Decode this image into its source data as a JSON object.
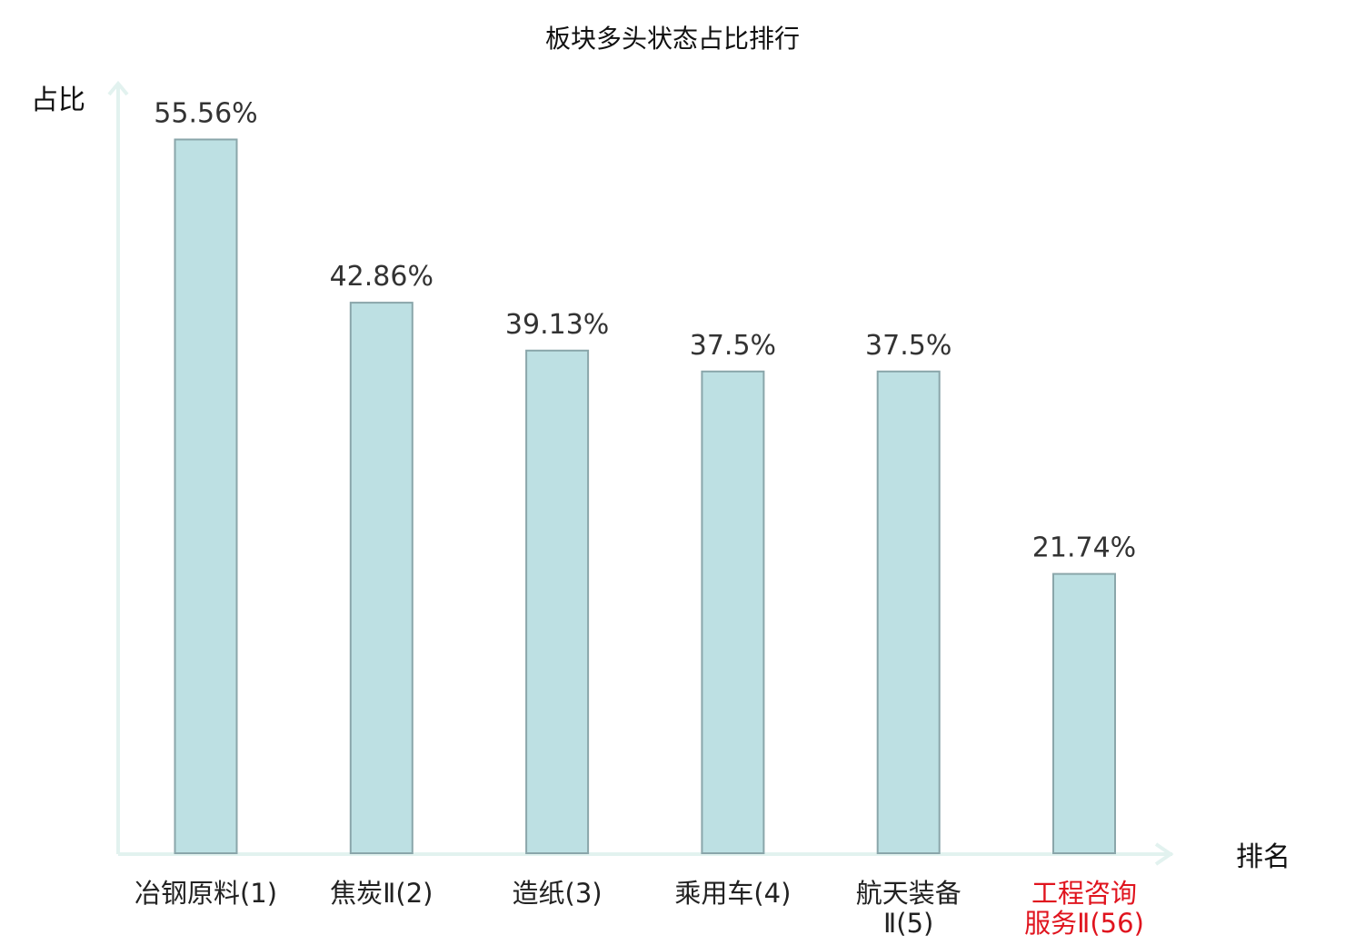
{
  "chart_data": {
    "type": "bar",
    "title": "板块多头状态占比排行",
    "ylabel": "占比",
    "xlabel": "排名",
    "ylim": [
      0,
      60
    ],
    "grid": false,
    "legend": "none",
    "categories": [
      [
        "冶钢原料(1)"
      ],
      [
        "焦炭Ⅱ(2)"
      ],
      [
        "造纸(3)"
      ],
      [
        "乘用车(4)"
      ],
      [
        "航天装备",
        "Ⅱ(5)"
      ],
      [
        "工程咨询",
        "服务Ⅱ(56)"
      ]
    ],
    "values": [
      55.56,
      42.86,
      39.13,
      37.5,
      37.5,
      21.74
    ],
    "value_labels": [
      "55.56%",
      "42.86%",
      "39.13%",
      "37.5%",
      "37.5%",
      "21.74%"
    ],
    "highlight_index": 5,
    "colors": {
      "bar_fill": "#bde0e3",
      "bar_stroke": "#8aa6aa",
      "axis": "#e2f2ef",
      "highlight_text": "#e0141e",
      "text": "#222222"
    }
  }
}
